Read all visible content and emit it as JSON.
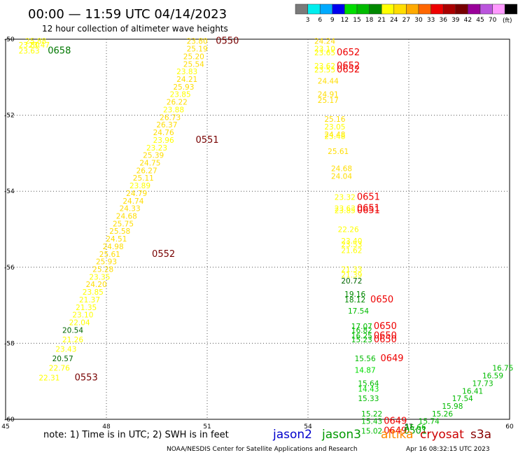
{
  "header": {
    "title": "00:00 — 11:59 UTC 04/14/2023",
    "subtitle": "12 hour collection of altimeter wave heights"
  },
  "colorbar": {
    "labels": [
      "3",
      "6",
      "9",
      "12",
      "15",
      "18",
      "21",
      "24",
      "27",
      "30",
      "33",
      "36",
      "39",
      "42",
      "45",
      "70"
    ],
    "unit": "(ft)",
    "colors": [
      "#7a7a7a",
      "#00eeee",
      "#00aaff",
      "#0000ee",
      "#00dd00",
      "#00bb00",
      "#008800",
      "#ffff00",
      "#ffdd00",
      "#ffaa00",
      "#ff6600",
      "#ee0000",
      "#aa0000",
      "#770000",
      "#990099",
      "#bb55dd",
      "#ff99ff",
      "#000000"
    ]
  },
  "footer": {
    "note": "note: 1) Time is in UTC; 2) SWH is in feet",
    "credit": "NOAA/NESDIS Center for Satellite Applications and Research",
    "timestamp": "Apr 16 08:32:15 UTC 2023"
  },
  "legend": [
    {
      "name": "jason2",
      "color": "#0000cc"
    },
    {
      "name": "jason3",
      "color": "#009900"
    },
    {
      "name": "altika",
      "color": "#ff8800"
    },
    {
      "name": "cryosat",
      "color": "#cc0000"
    },
    {
      "name": "s3a",
      "color": "#880000"
    }
  ],
  "chart_data": {
    "type": "scatter",
    "title": "00:00 — 11:59 UTC 04/14/2023",
    "subtitle": "12 hour collection of altimeter wave heights",
    "xlim": [
      45,
      60
    ],
    "ylim": [
      -60,
      -50
    ],
    "xticks": [
      "45",
      "48",
      "51",
      "54",
      "57",
      "60"
    ],
    "yticks": [
      "-50",
      "-52",
      "-54",
      "-56",
      "-58",
      "-60"
    ],
    "xtick_values": [
      45,
      48,
      51,
      54,
      57,
      60
    ],
    "ytick_values": [
      -50,
      -52,
      -54,
      -56,
      -58,
      -60
    ],
    "grid": true,
    "points": [
      {
        "x": 45.7,
        "y": -50.3,
        "label": "23.63",
        "color": "#ffff00"
      },
      {
        "x": 45.7,
        "y": -50.15,
        "label": "23.80",
        "color": "#ffff00"
      },
      {
        "x": 45.9,
        "y": -50.05,
        "label": "25.88",
        "color": "#ffff00"
      },
      {
        "x": 46.0,
        "y": -50.15,
        "label": "23.47",
        "color": "#ffff00"
      },
      {
        "x": 46.6,
        "y": -50.3,
        "label": "0658",
        "color": "#007700"
      },
      {
        "x": 50.7,
        "y": -50.05,
        "label": "23.80",
        "color": "#ffdd00"
      },
      {
        "x": 51.6,
        "y": -50.05,
        "label": "0550",
        "color": "#770000"
      },
      {
        "x": 50.7,
        "y": -50.25,
        "label": "25.19",
        "color": "#ffdd00"
      },
      {
        "x": 50.6,
        "y": -50.45,
        "label": "25.20",
        "color": "#ffdd00"
      },
      {
        "x": 50.6,
        "y": -50.65,
        "label": "25.54",
        "color": "#ffdd00"
      },
      {
        "x": 50.4,
        "y": -50.85,
        "label": "23.83",
        "color": "#ffff00"
      },
      {
        "x": 50.4,
        "y": -51.05,
        "label": "24.21",
        "color": "#ffdd00"
      },
      {
        "x": 50.3,
        "y": -51.25,
        "label": "25.93",
        "color": "#ffdd00"
      },
      {
        "x": 50.2,
        "y": -51.45,
        "label": "23.85",
        "color": "#ffff00"
      },
      {
        "x": 50.1,
        "y": -51.65,
        "label": "26.22",
        "color": "#ffdd00"
      },
      {
        "x": 50.0,
        "y": -51.85,
        "label": "23.88",
        "color": "#ffff00"
      },
      {
        "x": 49.9,
        "y": -52.05,
        "label": "26.73",
        "color": "#ffdd00"
      },
      {
        "x": 49.8,
        "y": -52.25,
        "label": "26.37",
        "color": "#ffdd00"
      },
      {
        "x": 49.7,
        "y": -52.45,
        "label": "24.76",
        "color": "#ffdd00"
      },
      {
        "x": 49.7,
        "y": -52.65,
        "label": "23.96",
        "color": "#ffff00"
      },
      {
        "x": 51.0,
        "y": -52.65,
        "label": "0551",
        "color": "#770000"
      },
      {
        "x": 49.5,
        "y": -52.85,
        "label": "23.23",
        "color": "#ffff00"
      },
      {
        "x": 49.4,
        "y": -53.05,
        "label": "25.39",
        "color": "#ffdd00"
      },
      {
        "x": 49.3,
        "y": -53.25,
        "label": "24.75",
        "color": "#ffdd00"
      },
      {
        "x": 49.2,
        "y": -53.45,
        "label": "26.27",
        "color": "#ffdd00"
      },
      {
        "x": 49.1,
        "y": -53.65,
        "label": "25.11",
        "color": "#ffdd00"
      },
      {
        "x": 49.0,
        "y": -53.85,
        "label": "23.89",
        "color": "#ffff00"
      },
      {
        "x": 48.9,
        "y": -54.05,
        "label": "24.79",
        "color": "#ffdd00"
      },
      {
        "x": 48.8,
        "y": -54.25,
        "label": "24.74",
        "color": "#ffdd00"
      },
      {
        "x": 48.7,
        "y": -54.45,
        "label": "24.33",
        "color": "#ffdd00"
      },
      {
        "x": 48.6,
        "y": -54.65,
        "label": "24.68",
        "color": "#ffdd00"
      },
      {
        "x": 48.5,
        "y": -54.85,
        "label": "25.75",
        "color": "#ffdd00"
      },
      {
        "x": 48.4,
        "y": -55.05,
        "label": "25.58",
        "color": "#ffdd00"
      },
      {
        "x": 48.3,
        "y": -55.25,
        "label": "24.51",
        "color": "#ffdd00"
      },
      {
        "x": 48.2,
        "y": -55.45,
        "label": "24.98",
        "color": "#ffdd00"
      },
      {
        "x": 48.1,
        "y": -55.65,
        "label": "25.61",
        "color": "#ffdd00"
      },
      {
        "x": 49.7,
        "y": -55.65,
        "label": "0552",
        "color": "#770000"
      },
      {
        "x": 48.0,
        "y": -55.85,
        "label": "25.93",
        "color": "#ffdd00"
      },
      {
        "x": 47.9,
        "y": -56.05,
        "label": "25.28",
        "color": "#ffdd00"
      },
      {
        "x": 47.8,
        "y": -56.25,
        "label": "23.35",
        "color": "#ffff00"
      },
      {
        "x": 47.7,
        "y": -56.45,
        "label": "24.20",
        "color": "#ffdd00"
      },
      {
        "x": 47.6,
        "y": -56.65,
        "label": "23.85",
        "color": "#ffff00"
      },
      {
        "x": 47.5,
        "y": -56.85,
        "label": "21.37",
        "color": "#ffff00"
      },
      {
        "x": 47.4,
        "y": -57.05,
        "label": "21.35",
        "color": "#ffff00"
      },
      {
        "x": 47.3,
        "y": -57.25,
        "label": "23.10",
        "color": "#ffff00"
      },
      {
        "x": 47.2,
        "y": -57.45,
        "label": "22.04",
        "color": "#ffff00"
      },
      {
        "x": 47.0,
        "y": -57.65,
        "label": "20.54",
        "color": "#006600"
      },
      {
        "x": 47.0,
        "y": -57.9,
        "label": "21.26",
        "color": "#ffff00"
      },
      {
        "x": 46.8,
        "y": -58.15,
        "label": "23.43",
        "color": "#ffff00"
      },
      {
        "x": 46.7,
        "y": -58.4,
        "label": "20.57",
        "color": "#006600"
      },
      {
        "x": 46.6,
        "y": -58.65,
        "label": "22.76",
        "color": "#ffff00"
      },
      {
        "x": 46.3,
        "y": -58.9,
        "label": "22.31",
        "color": "#ffff00"
      },
      {
        "x": 47.4,
        "y": -58.9,
        "label": "0553",
        "color": "#770000"
      },
      {
        "x": 54.5,
        "y": -50.05,
        "label": "24.24",
        "color": "#ffdd00"
      },
      {
        "x": 54.5,
        "y": -50.25,
        "label": "23.10",
        "color": "#ffff00"
      },
      {
        "x": 54.5,
        "y": -50.35,
        "label": "23.65",
        "color": "#ffff00"
      },
      {
        "x": 55.2,
        "y": -50.35,
        "label": "0652",
        "color": "#ee0000"
      },
      {
        "x": 54.5,
        "y": -50.7,
        "label": "23.62",
        "color": "#ffff00"
      },
      {
        "x": 54.5,
        "y": -50.8,
        "label": "23.55",
        "color": "#ffff00"
      },
      {
        "x": 55.2,
        "y": -50.7,
        "label": "0652",
        "color": "#ee0000"
      },
      {
        "x": 55.2,
        "y": -50.8,
        "label": "0652",
        "color": "#ee0000"
      },
      {
        "x": 54.6,
        "y": -51.1,
        "label": "24.44",
        "color": "#ffdd00"
      },
      {
        "x": 54.6,
        "y": -51.45,
        "label": "24.91",
        "color": "#ffdd00"
      },
      {
        "x": 54.6,
        "y": -51.6,
        "label": "25.17",
        "color": "#ffdd00"
      },
      {
        "x": 54.8,
        "y": -52.1,
        "label": "25.16",
        "color": "#ffdd00"
      },
      {
        "x": 54.8,
        "y": -52.3,
        "label": "23.05",
        "color": "#ffff00"
      },
      {
        "x": 54.8,
        "y": -52.5,
        "label": "24.48",
        "color": "#ffdd00"
      },
      {
        "x": 54.8,
        "y": -52.55,
        "label": "23.48",
        "color": "#ffff00"
      },
      {
        "x": 54.9,
        "y": -52.95,
        "label": "25.61",
        "color": "#ffdd00"
      },
      {
        "x": 55.0,
        "y": -53.4,
        "label": "24.68",
        "color": "#ffdd00"
      },
      {
        "x": 55.0,
        "y": -53.6,
        "label": "24.04",
        "color": "#ffdd00"
      },
      {
        "x": 55.1,
        "y": -54.15,
        "label": "23.32",
        "color": "#ffff00"
      },
      {
        "x": 55.8,
        "y": -54.15,
        "label": "0651",
        "color": "#ee0000"
      },
      {
        "x": 55.1,
        "y": -54.45,
        "label": "23.63",
        "color": "#ffff00"
      },
      {
        "x": 55.1,
        "y": -54.5,
        "label": "23.85",
        "color": "#ffff00"
      },
      {
        "x": 55.8,
        "y": -54.45,
        "label": "0651",
        "color": "#ee0000"
      },
      {
        "x": 55.8,
        "y": -54.5,
        "label": "0651",
        "color": "#ee0000"
      },
      {
        "x": 55.2,
        "y": -55.0,
        "label": "22.26",
        "color": "#ffff00"
      },
      {
        "x": 55.3,
        "y": -55.3,
        "label": "23.40",
        "color": "#ffff00"
      },
      {
        "x": 55.3,
        "y": -55.4,
        "label": "23.53",
        "color": "#ffff00"
      },
      {
        "x": 55.3,
        "y": -55.55,
        "label": "21.62",
        "color": "#ffff00"
      },
      {
        "x": 55.3,
        "y": -56.05,
        "label": "21.33",
        "color": "#ffff00"
      },
      {
        "x": 55.3,
        "y": -56.2,
        "label": "21.39",
        "color": "#ffff00"
      },
      {
        "x": 55.3,
        "y": -56.35,
        "label": "20.72",
        "color": "#006600"
      },
      {
        "x": 55.4,
        "y": -56.7,
        "label": "19.16",
        "color": "#008800"
      },
      {
        "x": 55.4,
        "y": -56.85,
        "label": "18.12",
        "color": "#008800"
      },
      {
        "x": 56.2,
        "y": -56.85,
        "label": "0650",
        "color": "#ee0000"
      },
      {
        "x": 55.5,
        "y": -57.15,
        "label": "17.54",
        "color": "#00bb00"
      },
      {
        "x": 55.6,
        "y": -57.55,
        "label": "17.07",
        "color": "#00bb00"
      },
      {
        "x": 55.6,
        "y": -57.65,
        "label": "16.82",
        "color": "#00bb00"
      },
      {
        "x": 55.6,
        "y": -57.8,
        "label": "16.25",
        "color": "#00bb00"
      },
      {
        "x": 55.6,
        "y": -57.9,
        "label": "15.23",
        "color": "#00bb00"
      },
      {
        "x": 56.3,
        "y": -57.55,
        "label": "0650",
        "color": "#ee0000"
      },
      {
        "x": 56.3,
        "y": -57.8,
        "label": "0650",
        "color": "#ee0000"
      },
      {
        "x": 56.3,
        "y": -57.9,
        "label": "0650",
        "color": "#ee0000"
      },
      {
        "x": 55.7,
        "y": -58.4,
        "label": "15.56",
        "color": "#00bb00"
      },
      {
        "x": 56.5,
        "y": -58.4,
        "label": "0649",
        "color": "#ee0000"
      },
      {
        "x": 55.7,
        "y": -58.7,
        "label": "14.87",
        "color": "#00dd00"
      },
      {
        "x": 55.8,
        "y": -59.05,
        "label": "15.64",
        "color": "#00bb00"
      },
      {
        "x": 55.8,
        "y": -59.2,
        "label": "14.43",
        "color": "#00dd00"
      },
      {
        "x": 55.8,
        "y": -59.45,
        "label": "15.33",
        "color": "#00bb00"
      },
      {
        "x": 55.9,
        "y": -59.85,
        "label": "15.22",
        "color": "#00bb00"
      },
      {
        "x": 55.9,
        "y": -60.05,
        "label": "15.43",
        "color": "#00bb00"
      },
      {
        "x": 56.6,
        "y": -60.05,
        "label": "0649",
        "color": "#ee0000"
      },
      {
        "x": 55.9,
        "y": -60.3,
        "label": "15.02",
        "color": "#00bb00"
      },
      {
        "x": 56.6,
        "y": -60.3,
        "label": "0649",
        "color": "#ee0000"
      },
      {
        "x": 57.2,
        "y": -60.3,
        "label": "0501",
        "color": "#009900"
      },
      {
        "x": 57.2,
        "y": -60.2,
        "label": "15.66",
        "color": "#00bb00"
      },
      {
        "x": 57.6,
        "y": -60.05,
        "label": "15.74",
        "color": "#00bb00"
      },
      {
        "x": 58.0,
        "y": -59.85,
        "label": "15.26",
        "color": "#00bb00"
      },
      {
        "x": 58.3,
        "y": -59.65,
        "label": "15.98",
        "color": "#00bb00"
      },
      {
        "x": 58.6,
        "y": -59.45,
        "label": "17.54",
        "color": "#00bb00"
      },
      {
        "x": 58.9,
        "y": -59.25,
        "label": "16.41",
        "color": "#00bb00"
      },
      {
        "x": 59.2,
        "y": -59.05,
        "label": "17.73",
        "color": "#00bb00"
      },
      {
        "x": 59.5,
        "y": -58.85,
        "label": "16.59",
        "color": "#00bb00"
      },
      {
        "x": 59.8,
        "y": -58.65,
        "label": "16.75",
        "color": "#00bb00"
      }
    ]
  }
}
